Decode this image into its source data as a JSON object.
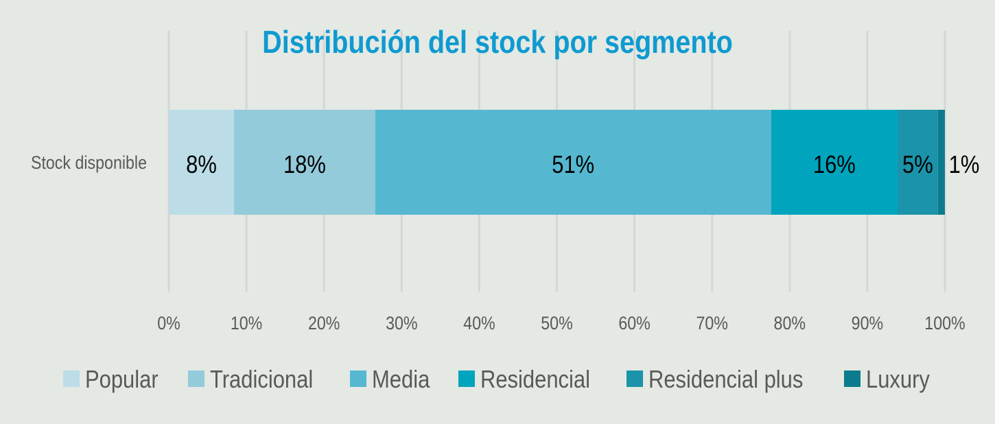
{
  "chart_data": {
    "type": "bar",
    "orientation": "horizontal",
    "stacked": "percent",
    "title": "Distribución del stock por segmento",
    "categories": [
      "Stock disponible"
    ],
    "series": [
      {
        "name": "Popular",
        "values": [
          8.4
        ],
        "label": "8%",
        "color": "#bcdde7"
      },
      {
        "name": "Tradicional",
        "values": [
          18.2
        ],
        "label": "18%",
        "color": "#94cbdb"
      },
      {
        "name": "Media",
        "values": [
          51.0
        ],
        "label": "51%",
        "color": "#56b8d0"
      },
      {
        "name": "Residencial",
        "values": [
          16.3
        ],
        "label": "16%",
        "color": "#00a5bd"
      },
      {
        "name": "Residencial plus",
        "values": [
          5.2
        ],
        "label": "5%",
        "color": "#1b93aa"
      },
      {
        "name": "Luxury",
        "values": [
          0.9
        ],
        "label": "1%",
        "color": "#0d7b8e"
      }
    ],
    "xlim": [
      0,
      100
    ],
    "xticks": [
      "0%",
      "10%",
      "20%",
      "30%",
      "40%",
      "50%",
      "60%",
      "70%",
      "80%",
      "90%",
      "100%"
    ],
    "grid": true,
    "legend": "bottom"
  }
}
